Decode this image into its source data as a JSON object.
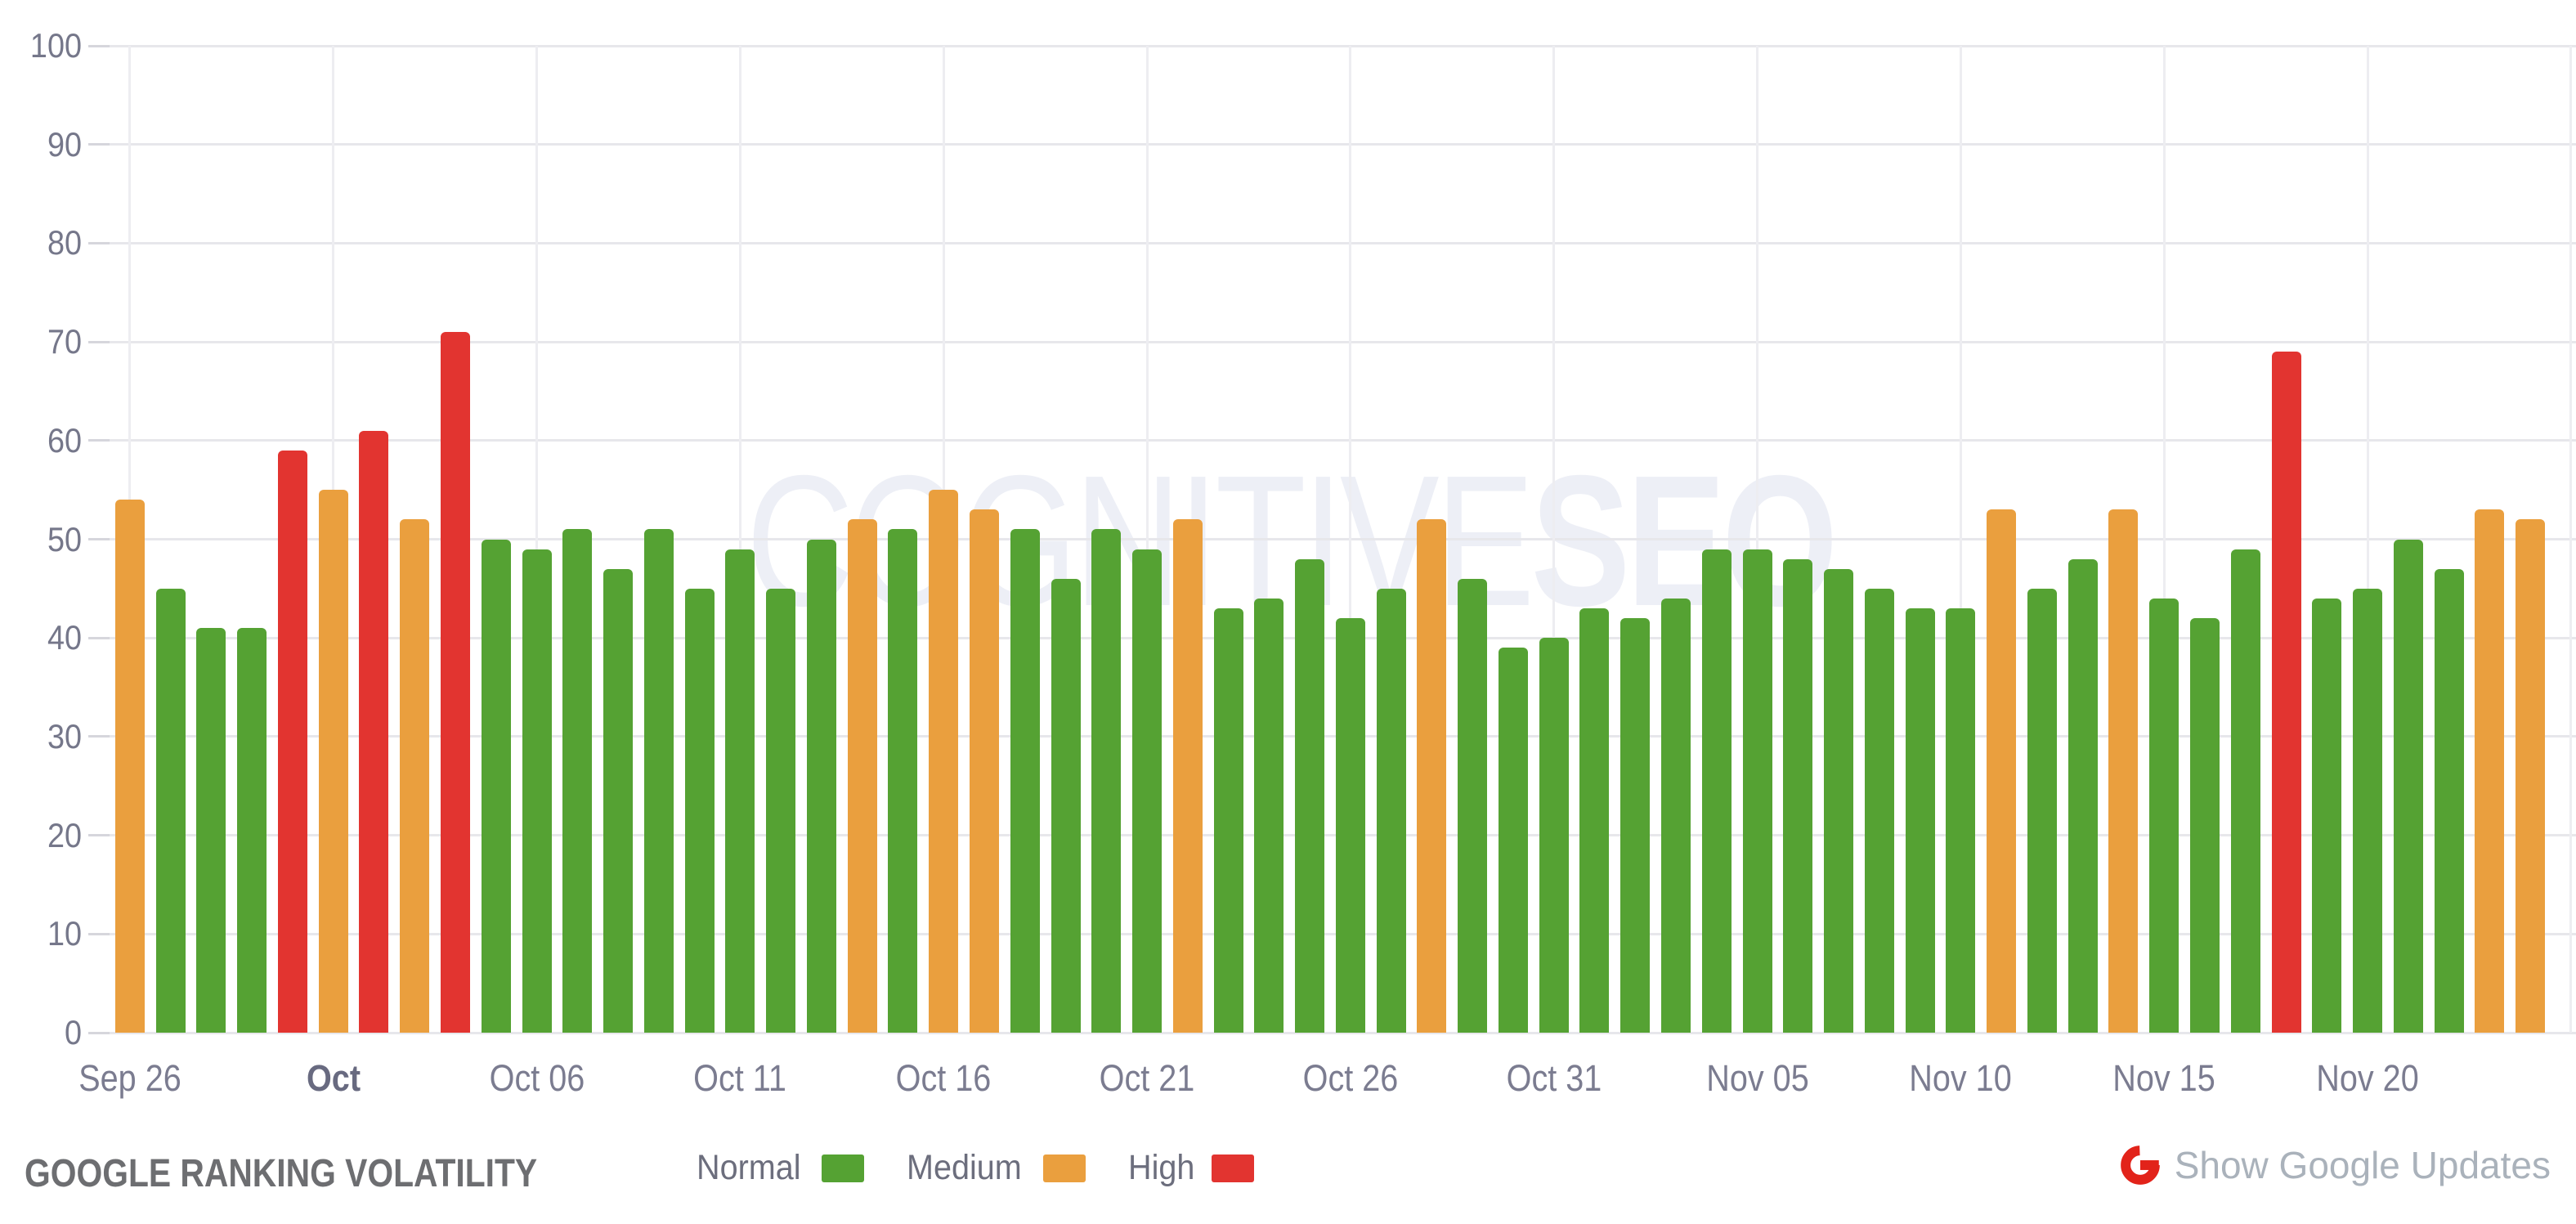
{
  "watermark": {
    "light": "COGNITIVE",
    "bold": "SEO"
  },
  "footer": {
    "title": "GOOGLE RANKING VOLATILITY",
    "legend": [
      {
        "label": "Normal",
        "level": "normal",
        "color": "#55A233"
      },
      {
        "label": "Medium",
        "level": "medium",
        "color": "#EA9F3E"
      },
      {
        "label": "High",
        "level": "high",
        "color": "#E23430"
      }
    ],
    "google_updates": {
      "label": "Show Google Updates",
      "icon": "google-g-icon",
      "icon_color": "#E2231A",
      "text_color": "#AAB2BB"
    }
  },
  "chart_data": {
    "type": "bar",
    "title": "GOOGLE RANKING VOLATILITY",
    "ylabel": "",
    "xlabel": "",
    "ylim": [
      0,
      100
    ],
    "y_ticks": [
      0,
      10,
      20,
      30,
      40,
      50,
      60,
      70,
      80,
      90,
      100
    ],
    "grid": true,
    "legend_position": "bottom",
    "colors": {
      "normal": "#55A233",
      "medium": "#EA9F3E",
      "high": "#E23430"
    },
    "x_tick_labels": [
      {
        "index": 0,
        "label": "Sep 26",
        "bold": false
      },
      {
        "index": 5,
        "label": "Oct",
        "bold": true
      },
      {
        "index": 10,
        "label": "Oct 06",
        "bold": false
      },
      {
        "index": 15,
        "label": "Oct 11",
        "bold": false
      },
      {
        "index": 20,
        "label": "Oct 16",
        "bold": false
      },
      {
        "index": 25,
        "label": "Oct 21",
        "bold": false
      },
      {
        "index": 30,
        "label": "Oct 26",
        "bold": false
      },
      {
        "index": 35,
        "label": "Oct 31",
        "bold": false
      },
      {
        "index": 40,
        "label": "Nov 05",
        "bold": false
      },
      {
        "index": 45,
        "label": "Nov 10",
        "bold": false
      },
      {
        "index": 50,
        "label": "Nov 15",
        "bold": false
      },
      {
        "index": 55,
        "label": "Nov 20",
        "bold": false
      }
    ],
    "bars": [
      {
        "value": 54,
        "level": "medium"
      },
      {
        "value": 45,
        "level": "normal"
      },
      {
        "value": 41,
        "level": "normal"
      },
      {
        "value": 41,
        "level": "normal"
      },
      {
        "value": 59,
        "level": "high"
      },
      {
        "value": 55,
        "level": "medium"
      },
      {
        "value": 61,
        "level": "high"
      },
      {
        "value": 52,
        "level": "medium"
      },
      {
        "value": 71,
        "level": "high"
      },
      {
        "value": 50,
        "level": "normal"
      },
      {
        "value": 49,
        "level": "normal"
      },
      {
        "value": 51,
        "level": "normal"
      },
      {
        "value": 47,
        "level": "normal"
      },
      {
        "value": 51,
        "level": "normal"
      },
      {
        "value": 45,
        "level": "normal"
      },
      {
        "value": 49,
        "level": "normal"
      },
      {
        "value": 45,
        "level": "normal"
      },
      {
        "value": 50,
        "level": "normal"
      },
      {
        "value": 52,
        "level": "medium"
      },
      {
        "value": 51,
        "level": "normal"
      },
      {
        "value": 55,
        "level": "medium"
      },
      {
        "value": 53,
        "level": "medium"
      },
      {
        "value": 51,
        "level": "normal"
      },
      {
        "value": 46,
        "level": "normal"
      },
      {
        "value": 51,
        "level": "normal"
      },
      {
        "value": 49,
        "level": "normal"
      },
      {
        "value": 52,
        "level": "medium"
      },
      {
        "value": 43,
        "level": "normal"
      },
      {
        "value": 44,
        "level": "normal"
      },
      {
        "value": 48,
        "level": "normal"
      },
      {
        "value": 42,
        "level": "normal"
      },
      {
        "value": 45,
        "level": "normal"
      },
      {
        "value": 52,
        "level": "medium"
      },
      {
        "value": 46,
        "level": "normal"
      },
      {
        "value": 39,
        "level": "normal"
      },
      {
        "value": 40,
        "level": "normal"
      },
      {
        "value": 43,
        "level": "normal"
      },
      {
        "value": 42,
        "level": "normal"
      },
      {
        "value": 44,
        "level": "normal"
      },
      {
        "value": 49,
        "level": "normal"
      },
      {
        "value": 49,
        "level": "normal"
      },
      {
        "value": 48,
        "level": "normal"
      },
      {
        "value": 47,
        "level": "normal"
      },
      {
        "value": 45,
        "level": "normal"
      },
      {
        "value": 43,
        "level": "normal"
      },
      {
        "value": 43,
        "level": "normal"
      },
      {
        "value": 53,
        "level": "medium"
      },
      {
        "value": 45,
        "level": "normal"
      },
      {
        "value": 48,
        "level": "normal"
      },
      {
        "value": 53,
        "level": "medium"
      },
      {
        "value": 44,
        "level": "normal"
      },
      {
        "value": 42,
        "level": "normal"
      },
      {
        "value": 49,
        "level": "normal"
      },
      {
        "value": 69,
        "level": "high"
      },
      {
        "value": 44,
        "level": "normal"
      },
      {
        "value": 45,
        "level": "normal"
      },
      {
        "value": 50,
        "level": "normal"
      },
      {
        "value": 47,
        "level": "normal"
      },
      {
        "value": 53,
        "level": "medium"
      },
      {
        "value": 52,
        "level": "medium"
      }
    ]
  }
}
